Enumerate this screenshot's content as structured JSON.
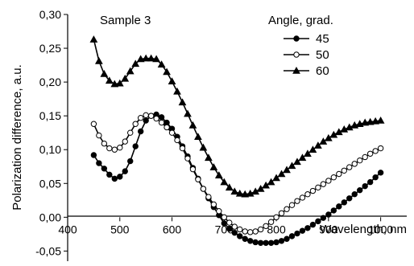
{
  "chart_data": {
    "type": "line",
    "annotation": "Sample 3",
    "xlabel": "Wavelength, nm",
    "ylabel": "Polarization difference, a.u.",
    "xlim": [
      400,
      1050
    ],
    "ylim": [
      -0.065,
      0.3
    ],
    "x_ticks": [
      400,
      500,
      600,
      700,
      800,
      900,
      1000
    ],
    "x_tick_labels": [
      "400",
      "500",
      "600",
      "700",
      "800",
      "900",
      "1000"
    ],
    "y_ticks": [
      -0.05,
      0.0,
      0.05,
      0.1,
      0.15,
      0.2,
      0.25,
      0.3
    ],
    "y_tick_labels": [
      "-0,05",
      "0,00",
      "0,05",
      "0,10",
      "0,15",
      "0,20",
      "0,25",
      "0,30"
    ],
    "legend": {
      "title": "Angle, grad.",
      "placement": "top-right"
    },
    "grid": false,
    "colors": {
      "line": "#000000",
      "marker_fill_solid": "#000000",
      "marker_fill_open": "#ffffff"
    },
    "series": [
      {
        "name": "45",
        "marker": "filled-circle",
        "x": [
          450,
          460,
          470,
          480,
          490,
          500,
          510,
          520,
          530,
          540,
          550,
          560,
          570,
          580,
          590,
          600,
          610,
          620,
          630,
          640,
          650,
          660,
          670,
          680,
          690,
          700,
          710,
          720,
          730,
          740,
          750,
          760,
          770,
          780,
          790,
          800,
          810,
          820,
          830,
          840,
          850,
          860,
          870,
          880,
          890,
          900,
          910,
          920,
          930,
          940,
          950,
          960,
          970,
          980,
          990,
          1000
        ],
        "y": [
          0.092,
          0.08,
          0.072,
          0.063,
          0.057,
          0.06,
          0.068,
          0.083,
          0.105,
          0.127,
          0.143,
          0.15,
          0.152,
          0.148,
          0.14,
          0.131,
          0.119,
          0.105,
          0.09,
          0.073,
          0.057,
          0.042,
          0.028,
          0.015,
          0.003,
          -0.009,
          -0.017,
          -0.023,
          -0.028,
          -0.032,
          -0.035,
          -0.037,
          -0.038,
          -0.038,
          -0.038,
          -0.037,
          -0.035,
          -0.032,
          -0.028,
          -0.024,
          -0.02,
          -0.016,
          -0.011,
          -0.006,
          -0.001,
          0.004,
          0.01,
          0.016,
          0.022,
          0.028,
          0.034,
          0.04,
          0.046,
          0.052,
          0.059,
          0.066
        ]
      },
      {
        "name": "50",
        "marker": "open-circle",
        "x": [
          450,
          460,
          470,
          480,
          490,
          500,
          510,
          520,
          530,
          540,
          550,
          560,
          570,
          580,
          590,
          600,
          610,
          620,
          630,
          640,
          650,
          660,
          670,
          680,
          690,
          700,
          710,
          720,
          730,
          740,
          750,
          760,
          770,
          780,
          790,
          800,
          810,
          820,
          830,
          840,
          850,
          860,
          870,
          880,
          890,
          900,
          910,
          920,
          930,
          940,
          950,
          960,
          970,
          980,
          990,
          1000
        ],
        "y": [
          0.138,
          0.121,
          0.109,
          0.102,
          0.1,
          0.103,
          0.112,
          0.125,
          0.138,
          0.147,
          0.151,
          0.15,
          0.146,
          0.14,
          0.133,
          0.125,
          0.114,
          0.102,
          0.087,
          0.071,
          0.056,
          0.042,
          0.03,
          0.019,
          0.009,
          0.0,
          -0.008,
          -0.014,
          -0.018,
          -0.021,
          -0.022,
          -0.021,
          -0.018,
          -0.013,
          -0.007,
          0.0,
          0.006,
          0.012,
          0.018,
          0.024,
          0.029,
          0.034,
          0.039,
          0.044,
          0.049,
          0.054,
          0.059,
          0.064,
          0.069,
          0.074,
          0.079,
          0.084,
          0.089,
          0.094,
          0.098,
          0.102
        ]
      },
      {
        "name": "60",
        "marker": "filled-triangle",
        "x": [
          450,
          460,
          470,
          480,
          490,
          500,
          510,
          520,
          530,
          540,
          550,
          560,
          570,
          580,
          590,
          600,
          610,
          620,
          630,
          640,
          650,
          660,
          670,
          680,
          690,
          700,
          710,
          720,
          730,
          740,
          750,
          760,
          770,
          780,
          790,
          800,
          810,
          820,
          830,
          840,
          850,
          860,
          870,
          880,
          890,
          900,
          910,
          920,
          930,
          940,
          950,
          960,
          970,
          980,
          990,
          1000
        ],
        "y": [
          0.263,
          0.231,
          0.212,
          0.202,
          0.197,
          0.198,
          0.205,
          0.216,
          0.227,
          0.234,
          0.235,
          0.235,
          0.234,
          0.226,
          0.215,
          0.201,
          0.186,
          0.17,
          0.153,
          0.136,
          0.119,
          0.103,
          0.088,
          0.074,
          0.062,
          0.052,
          0.044,
          0.038,
          0.035,
          0.034,
          0.035,
          0.038,
          0.042,
          0.047,
          0.052,
          0.058,
          0.064,
          0.07,
          0.076,
          0.082,
          0.088,
          0.094,
          0.1,
          0.106,
          0.112,
          0.117,
          0.122,
          0.126,
          0.13,
          0.133,
          0.136,
          0.138,
          0.14,
          0.141,
          0.142,
          0.143
        ]
      }
    ]
  }
}
